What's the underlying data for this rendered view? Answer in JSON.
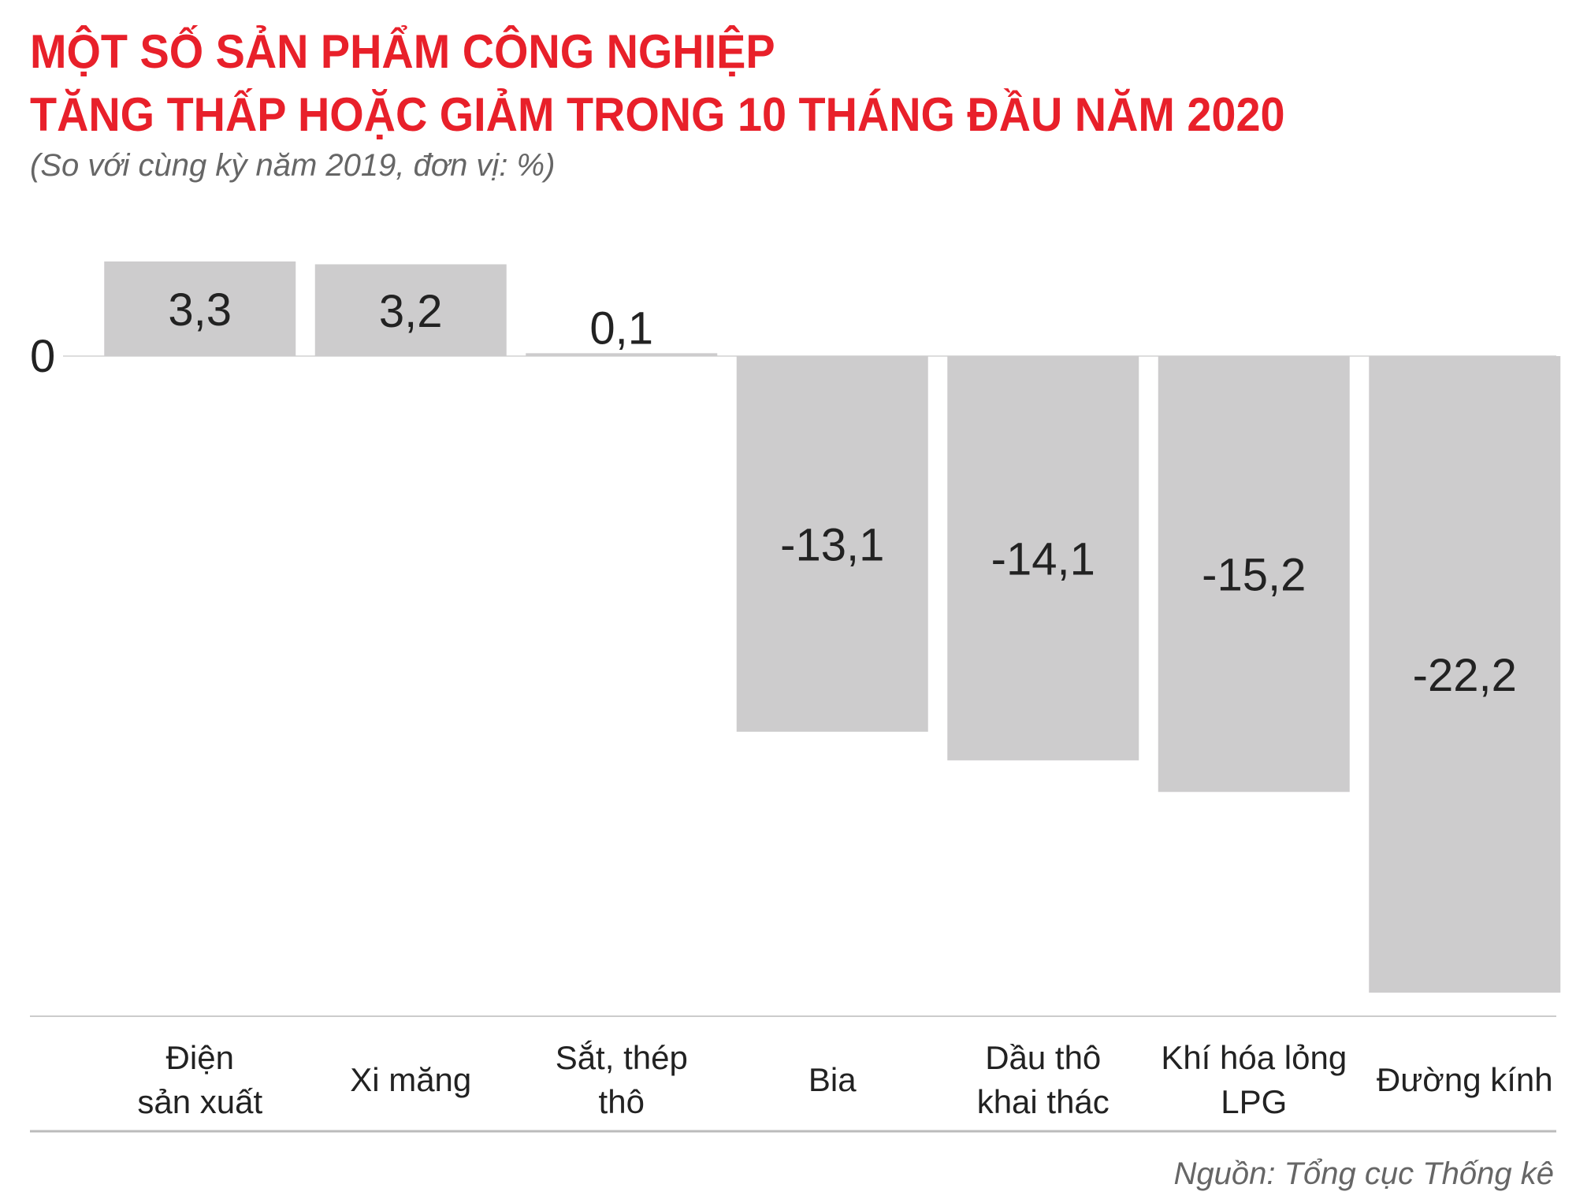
{
  "chart_data": {
    "type": "bar",
    "title_lines": [
      "MỘT SỐ SẢN PHẨM CÔNG NGHIỆP",
      "TĂNG THẤP HOẶC GIẢM TRONG 10 THÁNG ĐẦU NĂM 2020"
    ],
    "subtitle": "(So với cùng kỳ năm 2019, đơn vị: %)",
    "categories": [
      [
        "Điện",
        "sản xuất"
      ],
      [
        "Xi măng"
      ],
      [
        "Sắt, thép",
        "thô"
      ],
      [
        "Bia"
      ],
      [
        "Dầu thô",
        "khai thác"
      ],
      [
        "Khí hóa lỏng",
        "LPG"
      ],
      [
        "Đường kính"
      ]
    ],
    "values": [
      3.3,
      3.2,
      0.1,
      -13.1,
      -14.1,
      -15.2,
      -22.2
    ],
    "value_labels": [
      "3,3",
      "3,2",
      "0,1",
      "-13,1",
      "-14,1",
      "-15,2",
      "-22,2"
    ],
    "zero_label": "0",
    "ylim": [
      -22.2,
      3.3
    ],
    "grid": false,
    "legend": "none",
    "colors": {
      "title": "#e8202a",
      "bar": "#cdcccd",
      "text": "#222222",
      "muted": "#666666"
    },
    "source": "Nguồn: Tổng cục Thống kê"
  }
}
